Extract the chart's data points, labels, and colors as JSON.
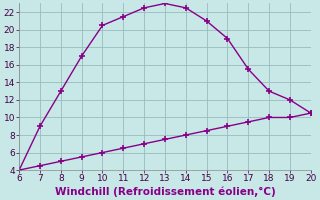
{
  "upper_x": [
    6,
    7,
    8,
    9,
    10,
    11,
    12,
    13,
    14,
    15,
    16,
    17,
    18,
    19,
    20
  ],
  "upper_y": [
    4,
    9,
    13,
    17,
    20.5,
    21.5,
    22.5,
    23,
    22.5,
    21,
    19,
    15.5,
    13,
    12,
    10.5
  ],
  "upper_marker_x": [
    6,
    7,
    8,
    9,
    10,
    11,
    12,
    13,
    14,
    15,
    16,
    17,
    18,
    19,
    20
  ],
  "upper_marker_y": [
    4,
    9,
    13,
    17,
    20.5,
    21.5,
    22.5,
    23,
    22.5,
    21,
    19,
    15.5,
    13,
    12,
    10.5
  ],
  "lower_x": [
    6,
    7,
    8,
    9,
    10,
    11,
    12,
    13,
    14,
    15,
    16,
    17,
    18,
    19,
    20
  ],
  "lower_y": [
    4,
    4.5,
    5.0,
    5.5,
    6.0,
    6.5,
    7.0,
    7.5,
    8.0,
    8.5,
    9.0,
    9.5,
    10.0,
    10.0,
    10.5
  ],
  "line_color": "#880088",
  "bg_color": "#c8e8e8",
  "grid_color": "#99bbbb",
  "xlabel": "Windchill (Refroidissement éolien,°C)",
  "xlim": [
    6,
    20
  ],
  "ylim": [
    4,
    23
  ],
  "xticks": [
    6,
    7,
    8,
    9,
    10,
    11,
    12,
    13,
    14,
    15,
    16,
    17,
    18,
    19,
    20
  ],
  "yticks": [
    4,
    6,
    8,
    10,
    12,
    14,
    16,
    18,
    20,
    22
  ],
  "marker": "+",
  "markersize": 4,
  "linewidth": 1.0,
  "xlabel_color": "#880088",
  "xlabel_fontsize": 7.5,
  "tick_fontsize": 6.5,
  "tick_color": "#440044"
}
